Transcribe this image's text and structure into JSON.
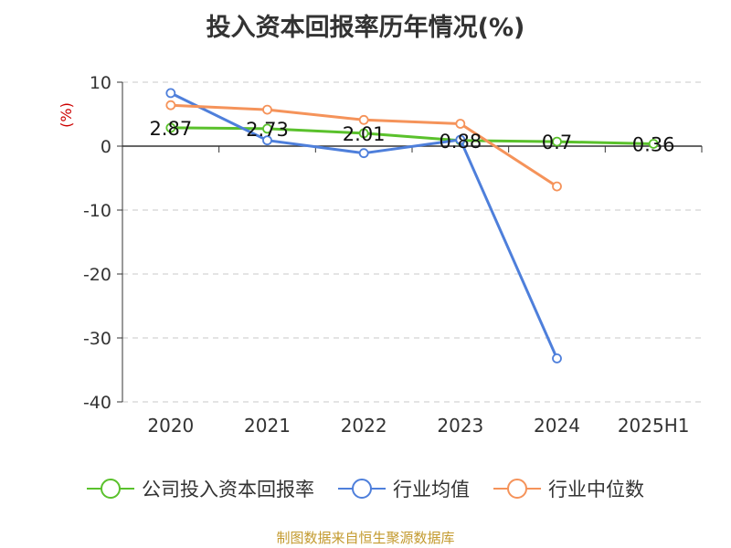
{
  "chart_data": {
    "type": "line",
    "title": "投入资本回报率历年情况(%)",
    "ylabel": "(%)",
    "categories": [
      "2020",
      "2021",
      "2022",
      "2023",
      "2024",
      "2025H1"
    ],
    "ylim": [
      -40,
      10
    ],
    "yticks": [
      10,
      0,
      -10,
      -20,
      -30,
      -40
    ],
    "grid": true,
    "legend_position": "bottom",
    "series": [
      {
        "name": "公司投入资本回报率",
        "color": "#5ac12c",
        "values": [
          2.87,
          2.73,
          2.01,
          0.88,
          0.7,
          0.36
        ],
        "labels": [
          "2.87",
          "2.73",
          "2.01",
          "0.88",
          "0.7",
          "0.36"
        ]
      },
      {
        "name": "行业均值",
        "color": "#4e7fdb",
        "values": [
          8.3,
          0.9,
          -1.1,
          1.0,
          -33.2,
          null
        ]
      },
      {
        "name": "行业中位数",
        "color": "#f5935a",
        "values": [
          6.4,
          5.7,
          4.1,
          3.5,
          -6.3,
          null
        ]
      }
    ]
  },
  "source": "制图数据来自恒生聚源数据库"
}
